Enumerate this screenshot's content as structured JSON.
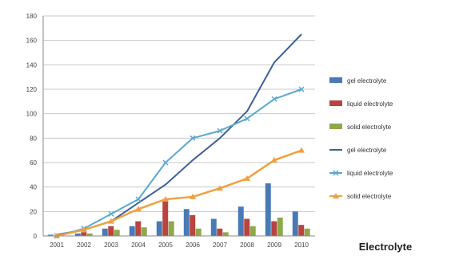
{
  "chart_data": {
    "type": "bar",
    "title": "Electrolyte",
    "categories": [
      "2001",
      "2002",
      "2003",
      "2004",
      "2005",
      "2006",
      "2007",
      "2008",
      "2009",
      "2010"
    ],
    "ylim": [
      0,
      180
    ],
    "yticks": [
      0,
      20,
      40,
      60,
      80,
      100,
      120,
      140,
      160,
      180
    ],
    "ytick_labels": [
      "0",
      "20",
      "40",
      "60",
      "80",
      "100",
      "120",
      "140",
      "160",
      "180"
    ],
    "grid": true,
    "legend_position": "right",
    "series": [
      {
        "name": "gel electrolyte",
        "kind": "bar",
        "color": "#4a7ab5",
        "values": [
          1,
          2,
          6,
          8,
          12,
          22,
          14,
          24,
          43,
          20
        ]
      },
      {
        "name": "liquid electrolyte",
        "kind": "bar",
        "color": "#b8433f",
        "values": [
          0,
          3,
          8,
          12,
          30,
          17,
          6,
          14,
          12,
          9
        ]
      },
      {
        "name": "solid electrolyte",
        "kind": "bar",
        "color": "#8fa84a",
        "values": [
          0,
          2,
          5,
          7,
          12,
          6,
          3,
          8,
          15,
          6
        ]
      },
      {
        "name": "gel electrolyte",
        "kind": "line",
        "marker": "none",
        "color": "#3f5f9a",
        "values": [
          1,
          5,
          12,
          27,
          42,
          62,
          80,
          102,
          142,
          165
        ]
      },
      {
        "name": "liquid electrolyte",
        "kind": "line",
        "marker": "x",
        "color": "#5aa8d0",
        "values": [
          0,
          6,
          18,
          30,
          60,
          80,
          86,
          96,
          112,
          120
        ]
      },
      {
        "name": "solid electrolyte",
        "kind": "line",
        "marker": "triangle",
        "color": "#f0a040",
        "values": [
          0,
          5,
          12,
          22,
          30,
          32,
          39,
          47,
          62,
          70
        ]
      }
    ]
  }
}
